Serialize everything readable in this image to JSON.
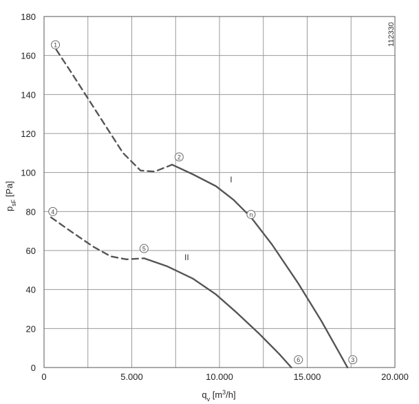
{
  "chart_data": {
    "type": "line",
    "title": "",
    "figure_id": "112330",
    "xlabel": {
      "main": "q",
      "sub": "v",
      "unit_pre": " [m",
      "unit_sup": "3",
      "unit_post": "/h]"
    },
    "ylabel": {
      "main": "p",
      "sub": "sF",
      "unit": " [Pa]"
    },
    "xlim": [
      0,
      20000
    ],
    "ylim": [
      0,
      180
    ],
    "x_ticks": [
      {
        "value": 0,
        "label": "0"
      },
      {
        "value": 5000,
        "label": "5.000"
      },
      {
        "value": 10000,
        "label": "10.000"
      },
      {
        "value": 15000,
        "label": "15.000"
      },
      {
        "value": 20000,
        "label": "20.000"
      }
    ],
    "y_ticks": [
      {
        "value": 0,
        "label": "0"
      },
      {
        "value": 20,
        "label": "20"
      },
      {
        "value": 40,
        "label": "40"
      },
      {
        "value": 60,
        "label": "60"
      },
      {
        "value": 80,
        "label": "80"
      },
      {
        "value": 100,
        "label": "100"
      },
      {
        "value": 120,
        "label": "120"
      },
      {
        "value": 140,
        "label": "140"
      },
      {
        "value": 160,
        "label": "160"
      },
      {
        "value": 180,
        "label": "180"
      }
    ],
    "x_grid_step": 2500,
    "y_grid_step": 20,
    "grid": true,
    "series": [
      {
        "name": "I",
        "style": "dashed",
        "points": [
          [
            700,
            163
          ],
          [
            1500,
            152
          ],
          [
            2500,
            138
          ],
          [
            3500,
            124
          ],
          [
            4500,
            110
          ],
          [
            5500,
            101
          ],
          [
            6300,
            100.5
          ],
          [
            7300,
            104
          ]
        ]
      },
      {
        "name": "I",
        "style": "solid",
        "points": [
          [
            7300,
            104
          ],
          [
            8500,
            99
          ],
          [
            9800,
            93
          ],
          [
            10800,
            86
          ],
          [
            11800,
            77
          ],
          [
            13000,
            63
          ],
          [
            14500,
            43
          ],
          [
            15800,
            24
          ],
          [
            16800,
            8
          ],
          [
            17300,
            0
          ]
        ]
      },
      {
        "name": "II",
        "style": "dashed",
        "points": [
          [
            400,
            77
          ],
          [
            1500,
            70
          ],
          [
            2800,
            62
          ],
          [
            3800,
            57
          ],
          [
            4700,
            55.5
          ],
          [
            5700,
            56
          ]
        ]
      },
      {
        "name": "II",
        "style": "solid",
        "points": [
          [
            5700,
            56
          ],
          [
            7000,
            52
          ],
          [
            8500,
            45.5
          ],
          [
            9800,
            37.5
          ],
          [
            11000,
            28
          ],
          [
            12300,
            17
          ],
          [
            13400,
            7
          ],
          [
            14100,
            0
          ]
        ]
      }
    ],
    "curve_labels": [
      {
        "text": "I",
        "x": 10600,
        "y": 95
      },
      {
        "text": "II",
        "x": 8000,
        "y": 55
      }
    ],
    "markers": [
      {
        "label": "1",
        "x": 650,
        "y": 165.5
      },
      {
        "label": "2",
        "x": 7700,
        "y": 108
      },
      {
        "label": "3",
        "x": 17600,
        "y": 4
      },
      {
        "label": "4",
        "x": 500,
        "y": 80
      },
      {
        "label": "5",
        "x": 5700,
        "y": 61
      },
      {
        "label": "6",
        "x": 14500,
        "y": 4
      },
      {
        "label": "n",
        "x": 11800,
        "y": 78.5
      }
    ]
  }
}
